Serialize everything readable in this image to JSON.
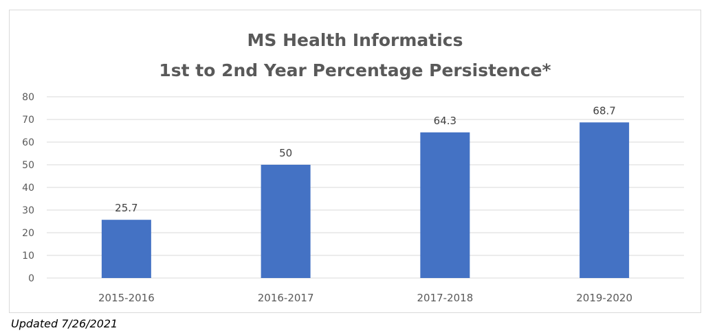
{
  "chart_data": {
    "type": "bar",
    "title_lines": [
      "MS Health Informatics",
      "1st to 2nd Year Percentage Persistence*"
    ],
    "categories": [
      "2015-2016",
      "2016-2017",
      "2017-2018",
      "2019-2020"
    ],
    "values": [
      25.7,
      50,
      64.3,
      68.7
    ],
    "value_labels": [
      "25.7",
      "50",
      "64.3",
      "68.7"
    ],
    "ylim": [
      0,
      80
    ],
    "y_ticks": [
      "0",
      "10",
      "20",
      "30",
      "40",
      "50",
      "60",
      "70",
      "80"
    ],
    "grid": true,
    "legend": "none",
    "xlabel": "",
    "ylabel": "",
    "bar_color": "#4472c4",
    "grid_color": "#d9d9d9"
  },
  "footnote": "Updated 7/26/2021"
}
